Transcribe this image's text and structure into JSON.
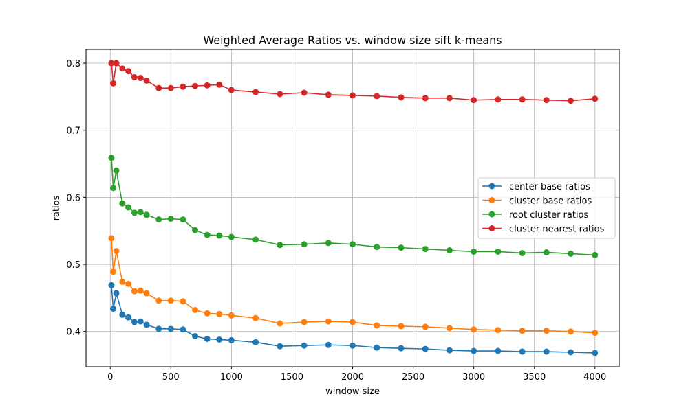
{
  "chart_data": {
    "type": "line",
    "title": "Weighted Average Ratios vs. window size sift k-means",
    "xlabel": "window size",
    "ylabel": "ratios",
    "xlim": [
      -200,
      4200
    ],
    "ylim": [
      0.3475,
      0.8205
    ],
    "xticks": [
      0,
      500,
      1000,
      1500,
      2000,
      2500,
      3000,
      3500,
      4000
    ],
    "yticks": [
      0.4,
      0.5,
      0.6,
      0.7,
      0.8
    ],
    "grid": true,
    "legend_position": "center-right",
    "x": [
      10,
      25,
      50,
      100,
      150,
      200,
      250,
      300,
      400,
      500,
      600,
      700,
      800,
      900,
      1000,
      1200,
      1400,
      1600,
      1800,
      2000,
      2200,
      2400,
      2600,
      2800,
      3000,
      3200,
      3400,
      3600,
      3800,
      4000
    ],
    "series": [
      {
        "name": "center base ratios",
        "color": "#1f77b4",
        "values": [
          0.469,
          0.434,
          0.457,
          0.425,
          0.421,
          0.414,
          0.415,
          0.41,
          0.404,
          0.404,
          0.403,
          0.393,
          0.389,
          0.388,
          0.387,
          0.384,
          0.378,
          0.379,
          0.38,
          0.379,
          0.376,
          0.375,
          0.374,
          0.372,
          0.371,
          0.371,
          0.37,
          0.37,
          0.369,
          0.368
        ]
      },
      {
        "name": "cluster base ratios",
        "color": "#ff7f0e",
        "values": [
          0.539,
          0.489,
          0.52,
          0.474,
          0.471,
          0.46,
          0.461,
          0.457,
          0.446,
          0.446,
          0.445,
          0.432,
          0.427,
          0.426,
          0.424,
          0.42,
          0.412,
          0.414,
          0.415,
          0.414,
          0.409,
          0.408,
          0.407,
          0.405,
          0.403,
          0.402,
          0.401,
          0.401,
          0.4,
          0.398
        ]
      },
      {
        "name": "root cluster ratios",
        "color": "#2ca02c",
        "values": [
          0.659,
          0.614,
          0.64,
          0.591,
          0.585,
          0.577,
          0.578,
          0.574,
          0.567,
          0.568,
          0.567,
          0.551,
          0.544,
          0.543,
          0.541,
          0.537,
          0.529,
          0.53,
          0.532,
          0.53,
          0.526,
          0.525,
          0.523,
          0.521,
          0.519,
          0.519,
          0.517,
          0.518,
          0.516,
          0.514
        ]
      },
      {
        "name": "cluster nearest ratios",
        "color": "#d62728",
        "values": [
          0.8,
          0.77,
          0.8,
          0.792,
          0.788,
          0.779,
          0.778,
          0.774,
          0.763,
          0.763,
          0.765,
          0.766,
          0.767,
          0.768,
          0.76,
          0.757,
          0.754,
          0.756,
          0.753,
          0.752,
          0.751,
          0.749,
          0.748,
          0.748,
          0.745,
          0.746,
          0.746,
          0.745,
          0.744,
          0.747
        ]
      }
    ]
  }
}
